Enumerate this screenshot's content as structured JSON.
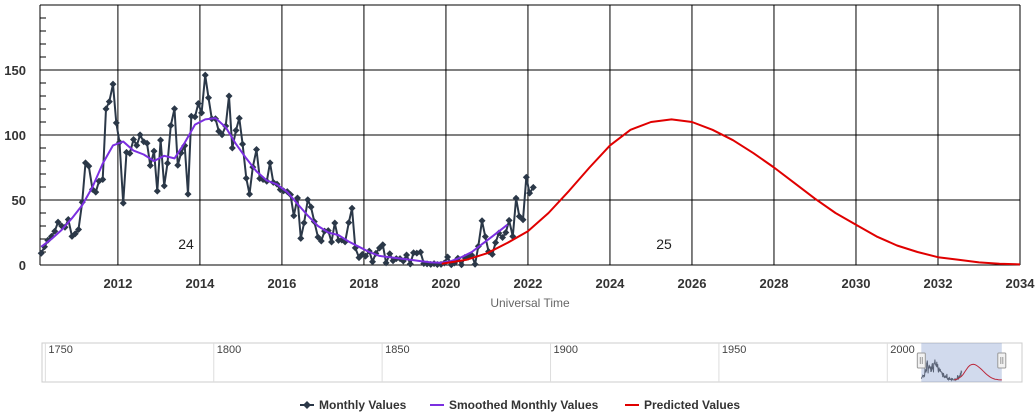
{
  "chart_data": {
    "type": "line",
    "x_label": "Universal Time",
    "xlim": [
      2010.1,
      2034
    ],
    "xticks": [
      2012,
      2014,
      2016,
      2018,
      2020,
      2022,
      2024,
      2026,
      2028,
      2030,
      2032,
      2034
    ],
    "ylim": [
      0,
      200
    ],
    "yticks": [
      0,
      50,
      100,
      150
    ],
    "grid": true,
    "legend": "bottom",
    "annotations": [
      "24",
      "25"
    ],
    "series": [
      {
        "name": "Monthly Values",
        "color": "#2b3848",
        "markers": true,
        "x": [
          2010.13,
          2010.21,
          2010.29,
          2010.38,
          2010.46,
          2010.54,
          2010.63,
          2010.71,
          2010.79,
          2010.88,
          2010.96,
          2011.04,
          2011.13,
          2011.21,
          2011.29,
          2011.38,
          2011.46,
          2011.54,
          2011.63,
          2011.71,
          2011.79,
          2011.88,
          2011.96,
          2012.04,
          2012.13,
          2012.21,
          2012.29,
          2012.38,
          2012.46,
          2012.54,
          2012.63,
          2012.71,
          2012.79,
          2012.88,
          2012.96,
          2013.04,
          2013.13,
          2013.21,
          2013.29,
          2013.38,
          2013.46,
          2013.54,
          2013.63,
          2013.71,
          2013.79,
          2013.88,
          2013.96,
          2014.04,
          2014.13,
          2014.21,
          2014.29,
          2014.38,
          2014.46,
          2014.54,
          2014.63,
          2014.71,
          2014.79,
          2014.88,
          2014.96,
          2015.04,
          2015.13,
          2015.21,
          2015.29,
          2015.38,
          2015.46,
          2015.54,
          2015.63,
          2015.71,
          2015.79,
          2015.88,
          2015.96,
          2016.04,
          2016.13,
          2016.21,
          2016.29,
          2016.38,
          2016.46,
          2016.54,
          2016.63,
          2016.71,
          2016.79,
          2016.88,
          2016.96,
          2017.04,
          2017.13,
          2017.21,
          2017.29,
          2017.38,
          2017.46,
          2017.54,
          2017.63,
          2017.71,
          2017.79,
          2017.88,
          2017.96,
          2018.04,
          2018.13,
          2018.21,
          2018.29,
          2018.38,
          2018.46,
          2018.54,
          2018.63,
          2018.71,
          2018.79,
          2018.88,
          2018.96,
          2019.04,
          2019.13,
          2019.21,
          2019.29,
          2019.38,
          2019.46,
          2019.54,
          2019.63,
          2019.71,
          2019.79,
          2019.88,
          2019.96,
          2020.04,
          2020.13,
          2020.21,
          2020.29,
          2020.38,
          2020.46,
          2020.54,
          2020.63,
          2020.71,
          2020.79,
          2020.88,
          2020.96,
          2021.04,
          2021.13,
          2021.21,
          2021.29,
          2021.38,
          2021.46,
          2021.54,
          2021.63,
          2021.71,
          2021.79,
          2021.88,
          2021.96,
          2022.04,
          2022.13
        ],
        "values": [
          9,
          14,
          19,
          22,
          26,
          33,
          30,
          29,
          35,
          22,
          24,
          27.3,
          48.3,
          78.6,
          76.1,
          58.2,
          56.1,
          64.5,
          65.8,
          120.1,
          125.7,
          139.1,
          109.3,
          94.4,
          47.6,
          86.6,
          85.9,
          96.5,
          92.0,
          100.1,
          94.8,
          93.7,
          76.5,
          87.6,
          56.8,
          96.1,
          60.9,
          78.3,
          107.3,
          120.2,
          76.7,
          86.2,
          91.8,
          54.5,
          114.4,
          113.9,
          124.2,
          117.0,
          146.1,
          128.7,
          112.5,
          112.5,
          102.9,
          100.2,
          106.9,
          130.0,
          90.0,
          103.6,
          112.9,
          93.0,
          66.7,
          54.5,
          75.3,
          88.8,
          66.5,
          65.8,
          64.4,
          78.6,
          63.6,
          62.2,
          58.0,
          57.0,
          56.4,
          54.1,
          37.9,
          51.5,
          20.5,
          32.4,
          50.2,
          44.6,
          33.4,
          21.4,
          18.5,
          26.1,
          26.4,
          17.7,
          32.3,
          18.9,
          19.2,
          17.8,
          32.6,
          43.7,
          13.2,
          5.7,
          8.2,
          6.8,
          10.7,
          2.5,
          8.9,
          13.1,
          15.6,
          1.6,
          8.7,
          3.3,
          4.9,
          4.9,
          3.1,
          7.7,
          0.8,
          9.4,
          9.1,
          9.9,
          1.2,
          0.9,
          0.5,
          1.1,
          0.4,
          0.5,
          1.5,
          6.2,
          0.2,
          1.5,
          5.2,
          0.2,
          5.8,
          6.1,
          7.5,
          0.6,
          14.4,
          34.0,
          21.8,
          10.4,
          8.2,
          17.2,
          24.5,
          21.2,
          25.0,
          34.3,
          22.0,
          51.3,
          37.4,
          34.8,
          67.5,
          55.3,
          59.7
        ]
      },
      {
        "name": "Smoothed Monthly Values",
        "color": "#7b2fe0",
        "x": [
          2010.13,
          2010.38,
          2010.63,
          2010.88,
          2011.13,
          2011.38,
          2011.63,
          2011.88,
          2012.13,
          2012.38,
          2012.63,
          2012.88,
          2013.13,
          2013.38,
          2013.63,
          2013.88,
          2014.13,
          2014.38,
          2014.63,
          2014.88,
          2015.13,
          2015.38,
          2015.63,
          2015.88,
          2016.13,
          2016.38,
          2016.63,
          2016.88,
          2017.13,
          2017.38,
          2017.63,
          2017.88,
          2018.13,
          2018.38,
          2018.63,
          2018.88,
          2019.13,
          2019.38,
          2019.63,
          2019.88,
          2020.13,
          2020.38,
          2020.63,
          2020.88,
          2021.13,
          2021.38,
          2021.5
        ],
        "values": [
          14,
          20,
          27,
          36,
          46,
          60,
          78,
          92,
          95,
          88,
          85,
          80,
          84,
          82,
          94,
          108,
          112,
          113,
          106,
          93,
          82,
          72,
          65,
          62,
          56,
          47,
          38,
          30,
          25,
          23,
          18,
          14,
          10,
          7,
          6,
          5,
          4,
          3,
          2,
          1.8,
          3,
          6,
          10,
          16,
          22,
          28,
          31
        ]
      },
      {
        "name": "Predicted Values",
        "color": "#e00000",
        "x": [
          2019.9,
          2020.5,
          2021,
          2021.5,
          2022,
          2022.5,
          2023,
          2023.5,
          2024,
          2024.5,
          2025,
          2025.5,
          2026,
          2026.5,
          2027,
          2027.5,
          2028,
          2028.5,
          2029,
          2029.5,
          2030,
          2030.5,
          2031,
          2031.5,
          2032,
          2032.5,
          2033,
          2033.5,
          2034
        ],
        "values": [
          1,
          4,
          9,
          17,
          26,
          40,
          57,
          75,
          92,
          104,
          110,
          112,
          110,
          104,
          96,
          86,
          75,
          63,
          51,
          40,
          31,
          22,
          15,
          10,
          6,
          4,
          2,
          1,
          0.5
        ]
      }
    ],
    "navigator": {
      "xlim": [
        1749,
        2040
      ],
      "xticks": [
        1750,
        1800,
        1850,
        1900,
        1950,
        2000
      ],
      "selection": [
        2010.1,
        2034
      ]
    }
  }
}
